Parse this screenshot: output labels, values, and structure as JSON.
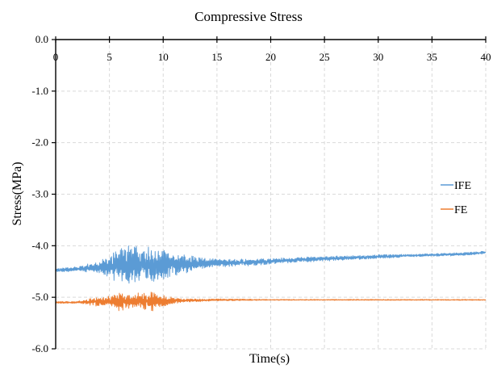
{
  "chart_data": {
    "type": "line",
    "title": "Compressive Stress",
    "xlabel": "Time(s)",
    "ylabel": "Stress(MPa)",
    "xlim": [
      0,
      40
    ],
    "ylim": [
      -6.0,
      0.0
    ],
    "x_ticks": [
      0,
      5,
      10,
      15,
      20,
      25,
      30,
      35,
      40
    ],
    "x_tick_labels": [
      "0",
      "5",
      "10",
      "15",
      "20",
      "25",
      "30",
      "35",
      "40"
    ],
    "y_ticks": [
      0,
      -1,
      -2,
      -3,
      -4,
      -5,
      -6
    ],
    "y_tick_labels": [
      "0.0",
      "-1.0",
      "-2.0",
      "-3.0",
      "-4.0",
      "-5.0",
      "-6.0"
    ],
    "x_axis_position": "top",
    "grid": true,
    "legend_position": "right",
    "series": [
      {
        "name": "IFE",
        "color": "#5b9bd5",
        "x": [
          0,
          2,
          4,
          5,
          6,
          7,
          8,
          9,
          10,
          11,
          12,
          13,
          14,
          15,
          18,
          20,
          22,
          25,
          28,
          30,
          33,
          35,
          38,
          40
        ],
        "center": [
          -4.48,
          -4.45,
          -4.42,
          -4.4,
          -4.38,
          -4.37,
          -4.38,
          -4.37,
          -4.36,
          -4.36,
          -4.36,
          -4.35,
          -4.34,
          -4.34,
          -4.32,
          -4.3,
          -4.28,
          -4.25,
          -4.23,
          -4.21,
          -4.19,
          -4.18,
          -4.16,
          -4.13
        ],
        "amplitude": [
          0.04,
          0.05,
          0.12,
          0.25,
          0.35,
          0.45,
          0.35,
          0.42,
          0.3,
          0.25,
          0.2,
          0.15,
          0.1,
          0.08,
          0.07,
          0.06,
          0.05,
          0.05,
          0.04,
          0.04,
          0.03,
          0.03,
          0.03,
          0.03
        ]
      },
      {
        "name": "FE",
        "color": "#ed7d31",
        "x": [
          0,
          2,
          3,
          4,
          5,
          6,
          7,
          8,
          9,
          10,
          11,
          12,
          13,
          15,
          20,
          25,
          30,
          35,
          40
        ],
        "center": [
          -5.1,
          -5.1,
          -5.09,
          -5.08,
          -5.08,
          -5.09,
          -5.08,
          -5.07,
          -5.08,
          -5.07,
          -5.07,
          -5.06,
          -5.06,
          -5.05,
          -5.05,
          -5.05,
          -5.05,
          -5.05,
          -5.05
        ],
        "amplitude": [
          0.02,
          0.02,
          0.06,
          0.1,
          0.14,
          0.2,
          0.12,
          0.18,
          0.2,
          0.12,
          0.06,
          0.04,
          0.03,
          0.02,
          0.01,
          0.01,
          0.01,
          0.01,
          0.01
        ]
      }
    ]
  }
}
